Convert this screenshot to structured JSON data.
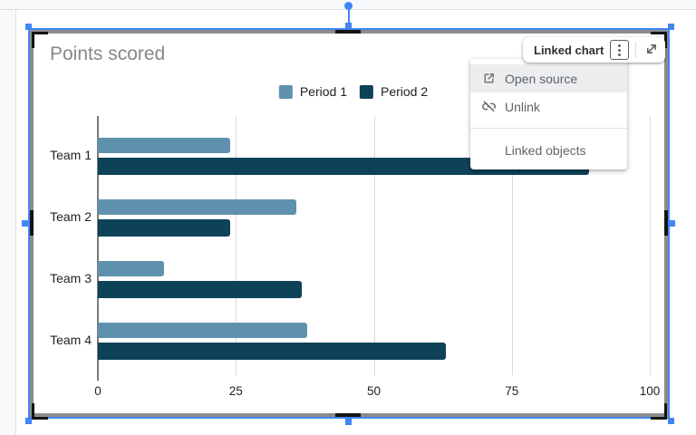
{
  "ui": {
    "colors": {
      "selection_blue": "#4285f4",
      "frame_gray": "#8c8c8c",
      "crop_handle_black": "#141414",
      "menu_hover_bg": "#ebedef",
      "menu_text": "#5f6368",
      "card_label_text": "#2d2f31",
      "title_text": "#868686",
      "axis_text": "#222222"
    },
    "card": {
      "label": "Linked chart"
    },
    "menu": {
      "items": [
        {
          "label": "Open source",
          "icon": "open-in-new-icon"
        },
        {
          "label": "Unlink",
          "icon": "link-off-icon"
        }
      ],
      "secondary_items": [
        {
          "label": "Linked objects"
        }
      ]
    }
  },
  "chart_data": {
    "type": "bar",
    "orientation": "horizontal",
    "title": "Points scored",
    "categories": [
      "Team 1",
      "Team 2",
      "Team 3",
      "Team 4"
    ],
    "series": [
      {
        "name": "Period 1",
        "color": "#5f91ae",
        "values": [
          24,
          36,
          12,
          38
        ]
      },
      {
        "name": "Period 2",
        "color": "#0d4258",
        "values": [
          89,
          24,
          37,
          63
        ]
      }
    ],
    "xlim": [
      0,
      100
    ],
    "x_ticks": [
      0,
      25,
      50,
      75,
      100
    ],
    "xlabel": "",
    "ylabel": "",
    "legend_position": "top-center",
    "grid": true
  }
}
